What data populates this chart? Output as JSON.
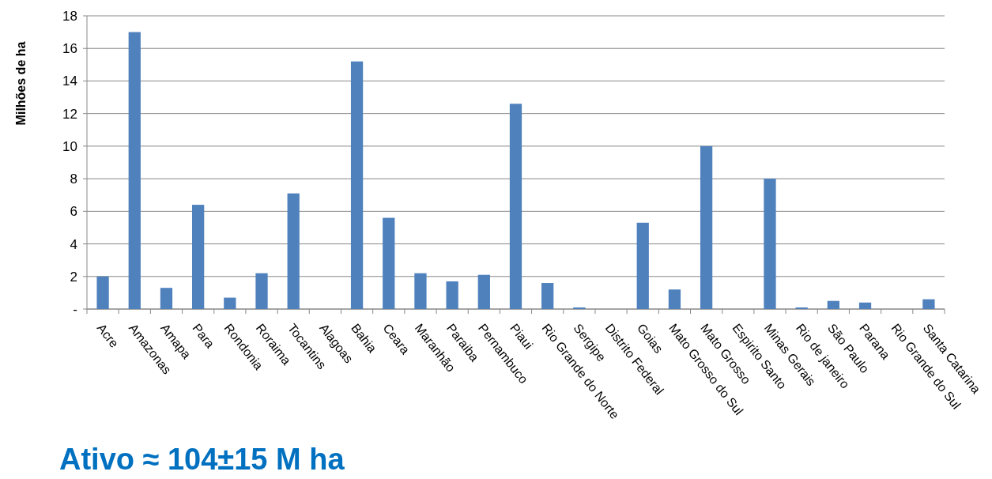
{
  "chart_data": {
    "type": "bar",
    "ylabel": "Milhões de ha",
    "categories": [
      "Acre",
      "Amazonas",
      "Amapa",
      "Para",
      "Rondonia",
      "Roraima",
      "Tocantins",
      "Alagoas",
      "Bahia",
      "Ceara",
      "Maranhão",
      "Paraiba",
      "Pernambuco",
      "Piaui",
      "Rio Grande do Norte",
      "Sergipe",
      "Distrito Federal",
      "Goias",
      "Mato Grosso do Sul",
      "Mato Grosso",
      "Espirito Santo",
      "Minas Gerais",
      "Rio de janeiro",
      "São Paulo",
      "Parana",
      "Rio Grande do Sul",
      "Santa Catarina"
    ],
    "values": [
      2.0,
      17.0,
      1.3,
      6.4,
      0.7,
      2.2,
      7.1,
      0,
      15.2,
      5.6,
      2.2,
      1.7,
      2.1,
      12.6,
      1.6,
      0.1,
      0,
      5.3,
      1.2,
      10.0,
      0,
      8.0,
      0.1,
      0.5,
      0.4,
      0,
      0.6
    ],
    "color": "#4f81bd",
    "ylim": [
      0,
      18
    ],
    "yticks": [
      {
        "value": 0,
        "label": "-"
      },
      2,
      4,
      6,
      8,
      10,
      12,
      14,
      16,
      18
    ],
    "grid": "y",
    "annotations": [
      "Ativo ≈ 104±15 M ha"
    ]
  }
}
